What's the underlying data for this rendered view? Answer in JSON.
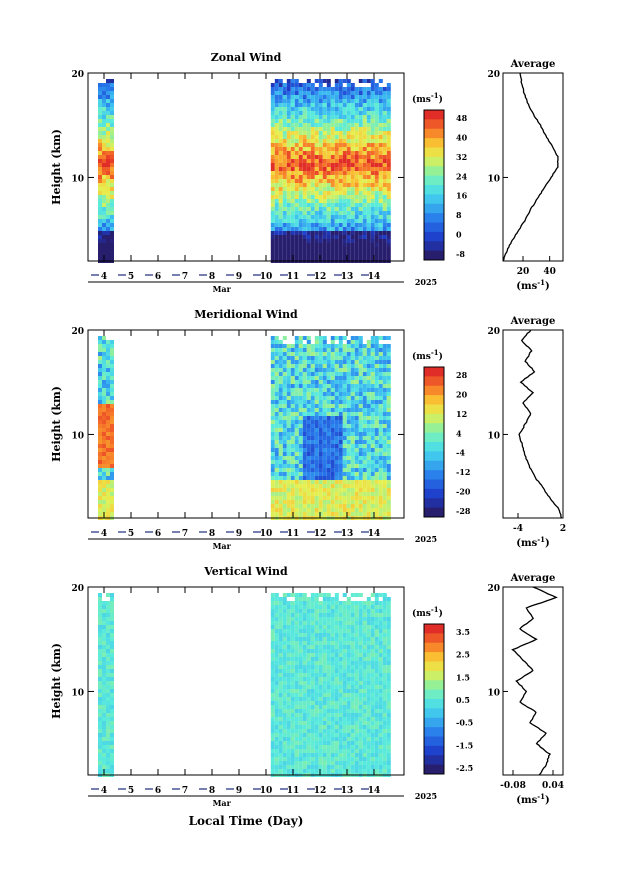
{
  "chart_data": [
    {
      "type": "heatmap",
      "title": "Zonal Wind",
      "ylabel": "Height (km)",
      "yticks": [
        "20",
        "10"
      ],
      "ylim": [
        2,
        20
      ],
      "xticks": [
        "4",
        "5",
        "6",
        "7",
        "8",
        "9",
        "10",
        "11",
        "12",
        "13",
        "14"
      ],
      "xunit": "Mar",
      "year": "2025",
      "data_blocks": [
        {
          "from_day": 4.0,
          "to_day": 4.3
        },
        {
          "from_day": 10.4,
          "to_day": 14.5
        }
      ],
      "colorbar": {
        "unit": "(ms",
        "unit_exp": "-1",
        "unit_end": ")",
        "labels": [
          "48",
          "40",
          "32",
          "24",
          "16",
          "8",
          "0",
          "-8"
        ]
      },
      "profile": {
        "title": "Average",
        "xticks": [
          "20",
          "40"
        ],
        "xlabel": "(ms",
        "xlabel_exp": "-1",
        "xlabel_end": ")",
        "xlim": [
          5,
          50
        ],
        "yticks": [
          "20",
          "10"
        ],
        "points": [
          [
            5,
            2
          ],
          [
            8,
            3
          ],
          [
            12,
            4
          ],
          [
            17,
            5
          ],
          [
            22,
            6
          ],
          [
            26,
            7
          ],
          [
            31,
            8
          ],
          [
            36,
            9
          ],
          [
            41,
            10
          ],
          [
            46,
            11
          ],
          [
            46,
            12
          ],
          [
            42,
            13
          ],
          [
            37,
            14
          ],
          [
            33,
            15
          ],
          [
            28,
            16
          ],
          [
            24,
            17
          ],
          [
            21,
            18
          ],
          [
            19,
            19
          ],
          [
            18,
            20
          ]
        ]
      }
    },
    {
      "type": "heatmap",
      "title": "Meridional Wind",
      "ylabel": "Height (km)",
      "yticks": [
        "20",
        "10"
      ],
      "ylim": [
        2,
        20
      ],
      "xticks": [
        "4",
        "5",
        "6",
        "7",
        "8",
        "9",
        "10",
        "11",
        "12",
        "13",
        "14"
      ],
      "xunit": "Mar",
      "year": "2025",
      "data_blocks": [
        {
          "from_day": 4.0,
          "to_day": 4.3
        },
        {
          "from_day": 10.4,
          "to_day": 14.5
        }
      ],
      "colorbar": {
        "unit": "(ms",
        "unit_exp": "-1",
        "unit_end": ")",
        "labels": [
          "28",
          "20",
          "12",
          "4",
          "-4",
          "-12",
          "-20",
          "-28"
        ]
      },
      "profile": {
        "title": "Average",
        "xticks": [
          "-4",
          "2"
        ],
        "xlabel": "(ms",
        "xlabel_exp": "-1",
        "xlabel_end": ")",
        "xlim": [
          -6,
          2
        ],
        "yticks": [
          "20",
          "10"
        ],
        "points": [
          [
            1.8,
            2
          ],
          [
            1.3,
            3
          ],
          [
            0.2,
            4
          ],
          [
            -0.8,
            5
          ],
          [
            -1.8,
            6
          ],
          [
            -2.5,
            7
          ],
          [
            -3.1,
            8
          ],
          [
            -3.4,
            9
          ],
          [
            -3.9,
            10
          ],
          [
            -3.0,
            11
          ],
          [
            -2.3,
            12
          ],
          [
            -3.4,
            13
          ],
          [
            -2.0,
            14
          ],
          [
            -3.6,
            15
          ],
          [
            -1.8,
            16
          ],
          [
            -3.0,
            17
          ],
          [
            -2.2,
            18
          ],
          [
            -3.5,
            19
          ],
          [
            -2.3,
            20
          ]
        ]
      }
    },
    {
      "type": "heatmap",
      "title": "Vertical Wind",
      "ylabel": "Height (km)",
      "yticks": [
        "20",
        "10"
      ],
      "ylim": [
        2,
        20
      ],
      "xticks": [
        "4",
        "5",
        "6",
        "7",
        "8",
        "9",
        "10",
        "11",
        "12",
        "13",
        "14"
      ],
      "xunit": "Mar",
      "year": "2025",
      "xlabel": "Local Time (Day)",
      "data_blocks": [
        {
          "from_day": 4.0,
          "to_day": 4.3
        },
        {
          "from_day": 10.4,
          "to_day": 14.5
        }
      ],
      "colorbar": {
        "unit": "(ms",
        "unit_exp": "-1",
        "unit_end": ")",
        "labels": [
          "3.5",
          "2.5",
          "1.5",
          "0.5",
          "-0.5",
          "-1.5",
          "-2.5"
        ]
      },
      "profile": {
        "title": "Average",
        "xticks": [
          "-0.08",
          "0.04"
        ],
        "xlabel": "(ms",
        "xlabel_exp": "-1",
        "xlabel_end": ")",
        "xlim": [
          -0.11,
          0.07
        ],
        "yticks": [
          "20",
          "10"
        ],
        "points": [
          [
            0.0,
            2
          ],
          [
            0.02,
            3
          ],
          [
            0.03,
            4
          ],
          [
            -0.01,
            5
          ],
          [
            0.02,
            6
          ],
          [
            -0.03,
            7
          ],
          [
            -0.01,
            8
          ],
          [
            -0.06,
            9
          ],
          [
            -0.04,
            10
          ],
          [
            -0.07,
            11
          ],
          [
            -0.02,
            12
          ],
          [
            -0.05,
            13
          ],
          [
            -0.08,
            14
          ],
          [
            -0.01,
            15
          ],
          [
            -0.06,
            16
          ],
          [
            -0.02,
            17
          ],
          [
            -0.04,
            18
          ],
          [
            0.05,
            19
          ],
          [
            -0.02,
            20
          ]
        ]
      }
    }
  ]
}
